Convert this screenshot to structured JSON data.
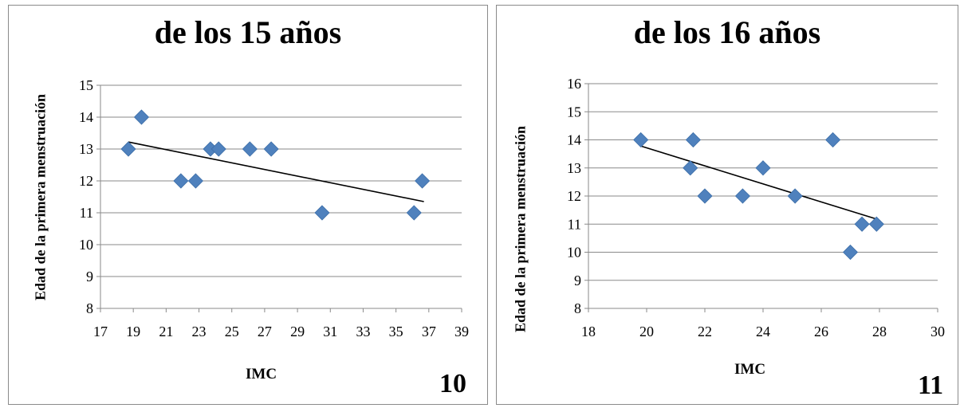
{
  "chart_data": [
    {
      "type": "scatter",
      "title": "de los 15 años",
      "xlabel": "IMC",
      "ylabel": "Edad de la primera menstruación",
      "figure_number": "10",
      "xlim": [
        17,
        39
      ],
      "ylim": [
        8,
        15
      ],
      "xticks": [
        17,
        19,
        21,
        23,
        25,
        27,
        29,
        31,
        33,
        35,
        37,
        39
      ],
      "yticks": [
        8,
        9,
        10,
        11,
        12,
        13,
        14,
        15
      ],
      "grid": true,
      "legend": "none",
      "marker_color": "#4f81bd",
      "trendline": {
        "x": [
          18.7,
          36.7
        ],
        "y": [
          13.22,
          11.35
        ]
      },
      "points": [
        {
          "x": 18.7,
          "y": 13
        },
        {
          "x": 19.5,
          "y": 14
        },
        {
          "x": 21.9,
          "y": 12
        },
        {
          "x": 22.8,
          "y": 12
        },
        {
          "x": 23.7,
          "y": 13
        },
        {
          "x": 24.2,
          "y": 13
        },
        {
          "x": 26.1,
          "y": 13
        },
        {
          "x": 27.4,
          "y": 13
        },
        {
          "x": 30.5,
          "y": 11
        },
        {
          "x": 36.1,
          "y": 11
        },
        {
          "x": 36.6,
          "y": 12
        }
      ]
    },
    {
      "type": "scatter",
      "title": "de los 16 años",
      "xlabel": "IMC",
      "ylabel": "Edad de la primera menstruación",
      "figure_number": "11",
      "xlim": [
        18,
        30
      ],
      "ylim": [
        8,
        16
      ],
      "xticks": [
        18,
        20,
        22,
        24,
        26,
        28,
        30
      ],
      "yticks": [
        8,
        9,
        10,
        11,
        12,
        13,
        14,
        15,
        16
      ],
      "grid": true,
      "legend": "none",
      "marker_color": "#4f81bd",
      "trendline": {
        "x": [
          19.8,
          27.9
        ],
        "y": [
          13.78,
          11.18
        ]
      },
      "points": [
        {
          "x": 19.8,
          "y": 14
        },
        {
          "x": 21.5,
          "y": 13
        },
        {
          "x": 21.6,
          "y": 14
        },
        {
          "x": 22.0,
          "y": 12
        },
        {
          "x": 23.3,
          "y": 12
        },
        {
          "x": 24.0,
          "y": 13
        },
        {
          "x": 25.1,
          "y": 12
        },
        {
          "x": 26.4,
          "y": 14
        },
        {
          "x": 27.0,
          "y": 10
        },
        {
          "x": 27.4,
          "y": 11
        },
        {
          "x": 27.9,
          "y": 11
        }
      ]
    }
  ]
}
